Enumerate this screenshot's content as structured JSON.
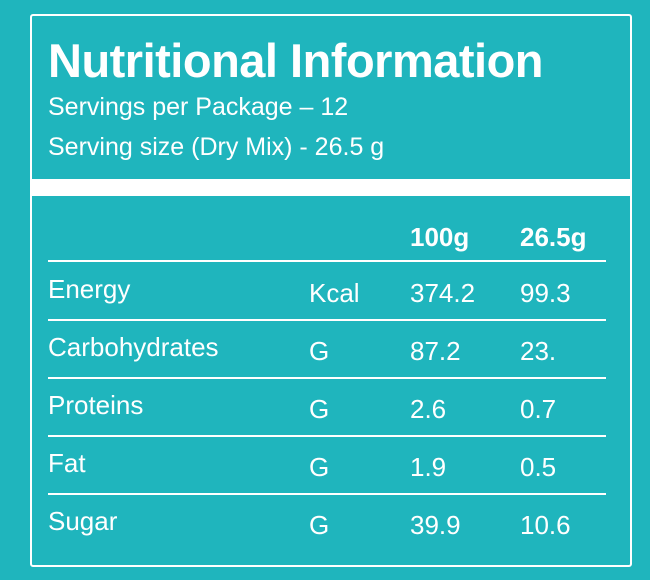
{
  "title": "Nutritional Information",
  "servings_per_package": "Servings per Package – 12",
  "serving_size": "Serving size (Dry Mix) - 26.5 g",
  "columns": [
    "100g",
    "26.5g"
  ],
  "rows": [
    {
      "nutrient": "Energy",
      "unit": "Kcal",
      "per_100g": "374.2",
      "per_serving": "99.3"
    },
    {
      "nutrient": "Carbohydrates",
      "unit": "G",
      "per_100g": "87.2",
      "per_serving": "23."
    },
    {
      "nutrient": "Proteins",
      "unit": "G",
      "per_100g": "2.6",
      "per_serving": "0.7"
    },
    {
      "nutrient": "Fat",
      "unit": "G",
      "per_100g": "1.9",
      "per_serving": "0.5"
    },
    {
      "nutrient": "Sugar",
      "unit": "G",
      "per_100g": "39.9",
      "per_serving": "10.6"
    }
  ],
  "colors": {
    "background": "#1fb5bd",
    "foreground": "#ffffff"
  }
}
